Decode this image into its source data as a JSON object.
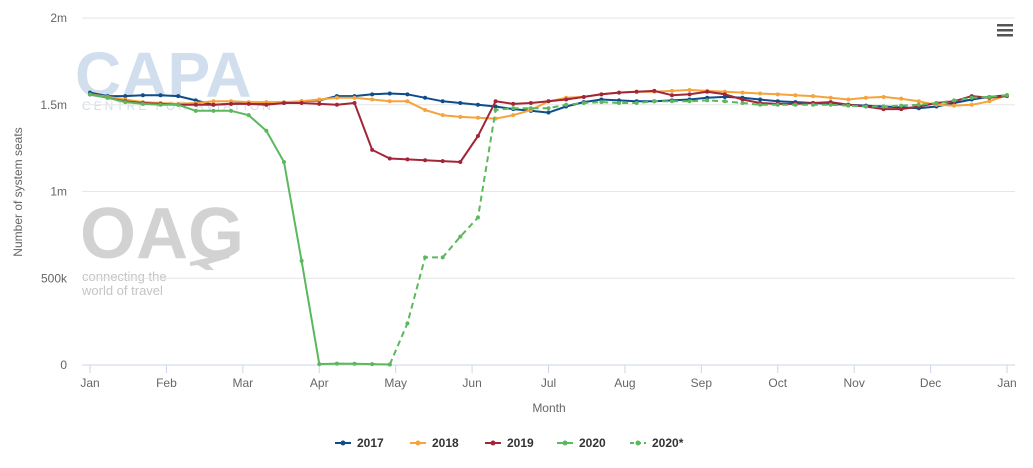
{
  "watermarks": {
    "capa": "CAPA",
    "capa_sub": "CENTRE FOR AVIATION",
    "oag": "OAG",
    "oag_tag_1": "connecting the",
    "oag_tag_2": "world of travel"
  },
  "menu_icon": "hamburger-icon",
  "chart_data": {
    "type": "line",
    "title": "",
    "xlabel": "Month",
    "ylabel": "Number of system seats",
    "x_ticks": [
      "Jan",
      "Feb",
      "Mar",
      "Apr",
      "May",
      "Jun",
      "Jul",
      "Aug",
      "Sep",
      "Oct",
      "Nov",
      "Dec",
      "Jan"
    ],
    "x_unit": "week of year (1 = first week of January, 53 = next January)",
    "xlim": [
      1,
      53
    ],
    "y_ticks": [
      {
        "value": 0,
        "label": "0"
      },
      {
        "value": 500000,
        "label": "500k"
      },
      {
        "value": 1000000,
        "label": "1m"
      },
      {
        "value": 1500000,
        "label": "1.5m"
      },
      {
        "value": 2000000,
        "label": "2m"
      }
    ],
    "ylim": [
      0,
      2000000
    ],
    "grid": "horizontal",
    "legend_position": "bottom-center",
    "series": [
      {
        "name": "2017",
        "color": "#0f4c8a",
        "dash": false,
        "x": [
          1,
          2,
          3,
          4,
          5,
          6,
          7,
          8,
          9,
          10,
          11,
          12,
          13,
          14,
          15,
          16,
          17,
          18,
          19,
          20,
          21,
          22,
          23,
          24,
          25,
          26,
          27,
          28,
          29,
          30,
          31,
          32,
          33,
          34,
          35,
          36,
          37,
          38,
          39,
          40,
          41,
          42,
          43,
          44,
          45,
          46,
          47,
          48,
          49,
          50,
          51,
          52,
          53
        ],
        "values": [
          1570000,
          1550000,
          1550000,
          1555000,
          1555000,
          1550000,
          1525000,
          1500000,
          1505000,
          1510000,
          1505000,
          1510000,
          1520000,
          1525000,
          1550000,
          1550000,
          1560000,
          1565000,
          1560000,
          1540000,
          1520000,
          1510000,
          1500000,
          1490000,
          1475000,
          1465000,
          1455000,
          1490000,
          1515000,
          1530000,
          1525000,
          1520000,
          1520000,
          1525000,
          1530000,
          1540000,
          1545000,
          1540000,
          1530000,
          1520000,
          1515000,
          1510000,
          1505000,
          1500000,
          1495000,
          1490000,
          1485000,
          1480000,
          1490000,
          1510000,
          1530000,
          1545000,
          1555000
        ]
      },
      {
        "name": "2018",
        "color": "#f5a33b",
        "dash": false,
        "x": [
          1,
          2,
          3,
          4,
          5,
          6,
          7,
          8,
          9,
          10,
          11,
          12,
          13,
          14,
          15,
          16,
          17,
          18,
          19,
          20,
          21,
          22,
          23,
          24,
          25,
          26,
          27,
          28,
          29,
          30,
          31,
          32,
          33,
          34,
          35,
          36,
          37,
          38,
          39,
          40,
          41,
          42,
          43,
          44,
          45,
          46,
          47,
          48,
          49,
          50,
          51,
          52,
          53
        ],
        "values": [
          1560000,
          1545000,
          1530000,
          1515000,
          1510000,
          1505000,
          1510000,
          1520000,
          1520000,
          1515000,
          1515000,
          1515000,
          1520000,
          1530000,
          1540000,
          1540000,
          1530000,
          1520000,
          1520000,
          1470000,
          1440000,
          1430000,
          1425000,
          1420000,
          1440000,
          1470000,
          1520000,
          1540000,
          1545000,
          1560000,
          1570000,
          1575000,
          1575000,
          1580000,
          1585000,
          1580000,
          1575000,
          1570000,
          1565000,
          1560000,
          1555000,
          1550000,
          1540000,
          1530000,
          1540000,
          1545000,
          1535000,
          1520000,
          1500000,
          1495000,
          1500000,
          1520000,
          1555000
        ]
      },
      {
        "name": "2019",
        "color": "#a32638",
        "dash": false,
        "x": [
          1,
          2,
          3,
          4,
          5,
          6,
          7,
          8,
          9,
          10,
          11,
          12,
          13,
          14,
          15,
          16,
          17,
          18,
          19,
          20,
          21,
          22,
          23,
          24,
          25,
          26,
          27,
          28,
          29,
          30,
          31,
          32,
          33,
          34,
          35,
          36,
          37,
          38,
          39,
          40,
          41,
          42,
          43,
          44,
          45,
          46,
          47,
          48,
          49,
          50,
          51,
          52,
          53
        ],
        "values": [
          1560000,
          1540000,
          1520000,
          1510000,
          1505000,
          1500000,
          1500000,
          1500000,
          1505000,
          1505000,
          1500000,
          1510000,
          1510000,
          1505000,
          1500000,
          1510000,
          1240000,
          1190000,
          1185000,
          1180000,
          1175000,
          1170000,
          1320000,
          1520000,
          1505000,
          1510000,
          1520000,
          1530000,
          1545000,
          1560000,
          1570000,
          1575000,
          1580000,
          1555000,
          1560000,
          1575000,
          1560000,
          1530000,
          1510000,
          1505000,
          1505000,
          1510000,
          1515000,
          1500000,
          1490000,
          1475000,
          1475000,
          1490000,
          1510000,
          1520000,
          1550000,
          1540000,
          1550000
        ]
      },
      {
        "name": "2020",
        "color": "#5cb85c",
        "dash": false,
        "x": [
          1,
          2,
          3,
          4,
          5,
          6,
          7,
          8,
          9,
          10,
          11,
          12,
          13,
          14,
          15,
          16,
          17,
          18
        ],
        "values": [
          1560000,
          1540000,
          1515000,
          1505000,
          1500000,
          1500000,
          1465000,
          1465000,
          1465000,
          1440000,
          1350000,
          1170000,
          600000,
          5000,
          8000,
          7000,
          5000,
          3000
        ]
      },
      {
        "name": "2020*",
        "color": "#5cb85c",
        "dash": true,
        "x": [
          18,
          19,
          20,
          21,
          22,
          23,
          24,
          25,
          26,
          27,
          28,
          29,
          30,
          31,
          32,
          33,
          34,
          35,
          36,
          37,
          38,
          39,
          40,
          41,
          42,
          43,
          44,
          45,
          46,
          47,
          48,
          49,
          50,
          51,
          52,
          53
        ],
        "values": [
          3000,
          240000,
          620000,
          620000,
          740000,
          850000,
          1470000,
          1480000,
          1480000,
          1480000,
          1500000,
          1510000,
          1515000,
          1510000,
          1510000,
          1520000,
          1520000,
          1520000,
          1525000,
          1520000,
          1510000,
          1500000,
          1500000,
          1500000,
          1500000,
          1500000,
          1495000,
          1490000,
          1490000,
          1495000,
          1500000,
          1510000,
          1525000,
          1540000,
          1545000,
          1555000
        ]
      }
    ]
  }
}
